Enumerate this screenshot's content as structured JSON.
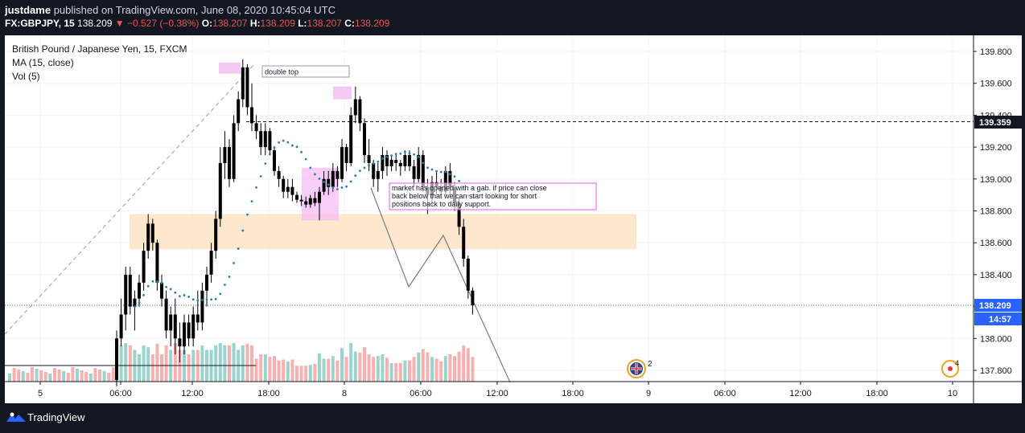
{
  "header": {
    "author": "justdame",
    "published_text": "published on TradingView.com, June 08, 2020 10:45:04 UTC",
    "symbol": "FX:GBPJPY, 15",
    "last_price": "138.209",
    "change": "▼ −0.527 (−0.38%)",
    "open_label": "O:",
    "open": "138.207",
    "high_label": "H:",
    "high": "138.209",
    "low_label": "L:",
    "low": "138.207",
    "close_label": "C:",
    "close": "138.209"
  },
  "legend": {
    "title": "British Pound / Japanese Yen, 15, FXCM",
    "ma": "MA (15, close)",
    "vol": "Vol (5)"
  },
  "price_axis": {
    "ticks": [
      "139.800",
      "139.600",
      "139.400",
      "139.200",
      "139.000",
      "138.800",
      "138.600",
      "138.400",
      "138.200",
      "138.000",
      "137.800"
    ],
    "last_price_label": "138.209",
    "countdown_label": "14:57",
    "level_label": "139.359"
  },
  "time_axis": {
    "ticks": [
      "5",
      "06:00",
      "12:00",
      "18:00",
      "8",
      "06:00",
      "12:00",
      "18:00",
      "9",
      "06:00",
      "12:00",
      "18:00",
      "10"
    ]
  },
  "annotations": {
    "double_top": "double top",
    "note": "market has opened with a gab. if price can close back below that we can start looking for short positions back to daily support."
  },
  "events": {
    "uk_count": "2",
    "other_count": "4"
  },
  "footer": {
    "brand": "TradingView"
  },
  "colors": {
    "up": "#26a69a",
    "down": "#ef5350",
    "candle": "#000000",
    "ma": "#2c7fa3",
    "support_zone": "#fde3c4",
    "highlight": "#f5b8f5",
    "last_price": "#2962ff",
    "vol_up": "#8fcfc6",
    "vol_down": "#f7a9a7"
  },
  "chart_data": {
    "type": "candlestick",
    "symbol": "FX:GBPJPY",
    "interval": "15",
    "ylim": [
      137.75,
      139.9
    ],
    "y_ticks": [
      139.8,
      139.6,
      139.4,
      139.2,
      139.0,
      138.8,
      138.6,
      138.4,
      138.2,
      138.0,
      137.8
    ],
    "x_ticks": [
      "5",
      "06:00",
      "12:00",
      "18:00",
      "8",
      "06:00",
      "12:00",
      "18:00",
      "9",
      "06:00",
      "12:00",
      "18:00",
      "10"
    ],
    "last_price": 138.209,
    "horizontal_level": 139.359,
    "support_zone": [
      138.56,
      138.78
    ],
    "candles": [
      {
        "o": 137.74,
        "h": 138.05,
        "l": 137.7,
        "c": 138.0
      },
      {
        "o": 138.0,
        "h": 138.25,
        "l": 137.95,
        "c": 138.15
      },
      {
        "o": 138.15,
        "h": 138.45,
        "l": 138.05,
        "c": 138.4
      },
      {
        "o": 138.4,
        "h": 138.45,
        "l": 138.15,
        "c": 138.2
      },
      {
        "o": 138.2,
        "h": 138.3,
        "l": 138.05,
        "c": 138.25
      },
      {
        "o": 138.25,
        "h": 138.4,
        "l": 138.2,
        "c": 138.35
      },
      {
        "o": 138.35,
        "h": 138.6,
        "l": 138.3,
        "c": 138.55
      },
      {
        "o": 138.55,
        "h": 138.78,
        "l": 138.5,
        "c": 138.72
      },
      {
        "o": 138.72,
        "h": 138.75,
        "l": 138.55,
        "c": 138.6
      },
      {
        "o": 138.6,
        "h": 138.62,
        "l": 138.3,
        "c": 138.35
      },
      {
        "o": 138.35,
        "h": 138.4,
        "l": 138.2,
        "c": 138.25
      },
      {
        "o": 138.25,
        "h": 138.3,
        "l": 138.0,
        "c": 138.05
      },
      {
        "o": 138.05,
        "h": 138.2,
        "l": 137.95,
        "c": 138.15
      },
      {
        "o": 138.15,
        "h": 138.25,
        "l": 137.9,
        "c": 138.0
      },
      {
        "o": 138.0,
        "h": 138.1,
        "l": 137.85,
        "c": 137.95
      },
      {
        "o": 137.95,
        "h": 138.15,
        "l": 137.9,
        "c": 138.1
      },
      {
        "o": 138.1,
        "h": 138.15,
        "l": 137.95,
        "c": 138.0
      },
      {
        "o": 138.0,
        "h": 138.2,
        "l": 137.95,
        "c": 138.15
      },
      {
        "o": 138.15,
        "h": 138.3,
        "l": 138.05,
        "c": 138.1
      },
      {
        "o": 138.1,
        "h": 138.35,
        "l": 138.05,
        "c": 138.3
      },
      {
        "o": 138.3,
        "h": 138.45,
        "l": 138.2,
        "c": 138.4
      },
      {
        "o": 138.4,
        "h": 138.6,
        "l": 138.35,
        "c": 138.55
      },
      {
        "o": 138.55,
        "h": 138.8,
        "l": 138.5,
        "c": 138.75
      },
      {
        "o": 138.75,
        "h": 139.2,
        "l": 138.7,
        "c": 139.1
      },
      {
        "o": 139.1,
        "h": 139.3,
        "l": 139.0,
        "c": 139.2
      },
      {
        "o": 139.2,
        "h": 139.25,
        "l": 138.95,
        "c": 139.0
      },
      {
        "o": 139.0,
        "h": 139.4,
        "l": 138.98,
        "c": 139.35
      },
      {
        "o": 139.35,
        "h": 139.55,
        "l": 139.3,
        "c": 139.5
      },
      {
        "o": 139.5,
        "h": 139.75,
        "l": 139.45,
        "c": 139.7
      },
      {
        "o": 139.7,
        "h": 139.72,
        "l": 139.4,
        "c": 139.45
      },
      {
        "o": 139.45,
        "h": 139.6,
        "l": 139.3,
        "c": 139.35
      },
      {
        "o": 139.35,
        "h": 139.4,
        "l": 139.25,
        "c": 139.3
      },
      {
        "o": 139.3,
        "h": 139.35,
        "l": 139.15,
        "c": 139.2
      },
      {
        "o": 139.2,
        "h": 139.35,
        "l": 139.15,
        "c": 139.3
      },
      {
        "o": 139.3,
        "h": 139.32,
        "l": 139.15,
        "c": 139.18
      },
      {
        "o": 139.18,
        "h": 139.2,
        "l": 139.02,
        "c": 139.05
      },
      {
        "o": 139.05,
        "h": 139.08,
        "l": 138.95,
        "c": 139.0
      },
      {
        "o": 139.0,
        "h": 139.02,
        "l": 138.88,
        "c": 138.92
      },
      {
        "o": 138.92,
        "h": 139.0,
        "l": 138.88,
        "c": 138.95
      },
      {
        "o": 138.95,
        "h": 139.0,
        "l": 138.86,
        "c": 138.9
      },
      {
        "o": 138.9,
        "h": 138.92,
        "l": 138.85,
        "c": 138.87
      },
      {
        "o": 138.87,
        "h": 138.9,
        "l": 138.83,
        "c": 138.86
      },
      {
        "o": 138.86,
        "h": 138.89,
        "l": 138.82,
        "c": 138.84
      },
      {
        "o": 138.84,
        "h": 138.9,
        "l": 138.82,
        "c": 138.88
      },
      {
        "o": 138.88,
        "h": 138.92,
        "l": 138.83,
        "c": 138.85
      },
      {
        "o": 138.85,
        "h": 138.95,
        "l": 138.74,
        "c": 138.92
      },
      {
        "o": 138.92,
        "h": 139.05,
        "l": 138.9,
        "c": 139.0
      },
      {
        "o": 139.0,
        "h": 139.05,
        "l": 138.9,
        "c": 138.95
      },
      {
        "o": 138.95,
        "h": 139.1,
        "l": 138.92,
        "c": 139.05
      },
      {
        "o": 139.05,
        "h": 139.08,
        "l": 138.95,
        "c": 139.0
      },
      {
        "o": 139.0,
        "h": 139.25,
        "l": 138.98,
        "c": 139.2
      },
      {
        "o": 139.2,
        "h": 139.22,
        "l": 139.05,
        "c": 139.1
      },
      {
        "o": 139.1,
        "h": 139.45,
        "l": 139.08,
        "c": 139.4
      },
      {
        "o": 139.4,
        "h": 139.58,
        "l": 139.35,
        "c": 139.5
      },
      {
        "o": 139.5,
        "h": 139.52,
        "l": 139.3,
        "c": 139.35
      },
      {
        "o": 139.35,
        "h": 139.38,
        "l": 139.1,
        "c": 139.15
      },
      {
        "o": 139.15,
        "h": 139.25,
        "l": 139.05,
        "c": 139.1
      },
      {
        "o": 139.1,
        "h": 139.12,
        "l": 138.95,
        "c": 139.0
      },
      {
        "o": 139.0,
        "h": 139.1,
        "l": 138.92,
        "c": 139.05
      },
      {
        "o": 139.05,
        "h": 139.2,
        "l": 139.0,
        "c": 139.15
      },
      {
        "o": 139.15,
        "h": 139.18,
        "l": 139.02,
        "c": 139.08
      },
      {
        "o": 139.08,
        "h": 139.15,
        "l": 139.05,
        "c": 139.12
      },
      {
        "o": 139.12,
        "h": 139.15,
        "l": 139.05,
        "c": 139.1
      },
      {
        "o": 139.1,
        "h": 139.12,
        "l": 139.02,
        "c": 139.08
      },
      {
        "o": 139.08,
        "h": 139.18,
        "l": 139.05,
        "c": 139.15
      },
      {
        "o": 139.15,
        "h": 139.18,
        "l": 139.05,
        "c": 139.08
      },
      {
        "o": 139.08,
        "h": 139.12,
        "l": 138.95,
        "c": 139.0
      },
      {
        "o": 139.0,
        "h": 139.2,
        "l": 138.98,
        "c": 139.15
      },
      {
        "o": 139.15,
        "h": 139.18,
        "l": 138.92,
        "c": 138.95
      },
      {
        "o": 138.95,
        "h": 139.0,
        "l": 138.78,
        "c": 138.9
      },
      {
        "o": 138.9,
        "h": 139.02,
        "l": 138.85,
        "c": 138.98
      },
      {
        "o": 138.98,
        "h": 139.05,
        "l": 138.9,
        "c": 138.95
      },
      {
        "o": 138.95,
        "h": 139.0,
        "l": 138.88,
        "c": 138.92
      },
      {
        "o": 138.92,
        "h": 139.08,
        "l": 138.9,
        "c": 139.05
      },
      {
        "o": 139.05,
        "h": 139.1,
        "l": 138.9,
        "c": 138.95
      },
      {
        "o": 138.95,
        "h": 138.98,
        "l": 138.8,
        "c": 138.85
      },
      {
        "o": 138.85,
        "h": 138.88,
        "l": 138.65,
        "c": 138.7
      },
      {
        "o": 138.7,
        "h": 138.75,
        "l": 138.45,
        "c": 138.5
      },
      {
        "o": 138.5,
        "h": 138.52,
        "l": 138.25,
        "c": 138.3
      },
      {
        "o": 138.3,
        "h": 138.32,
        "l": 138.15,
        "c": 138.209
      }
    ]
  }
}
